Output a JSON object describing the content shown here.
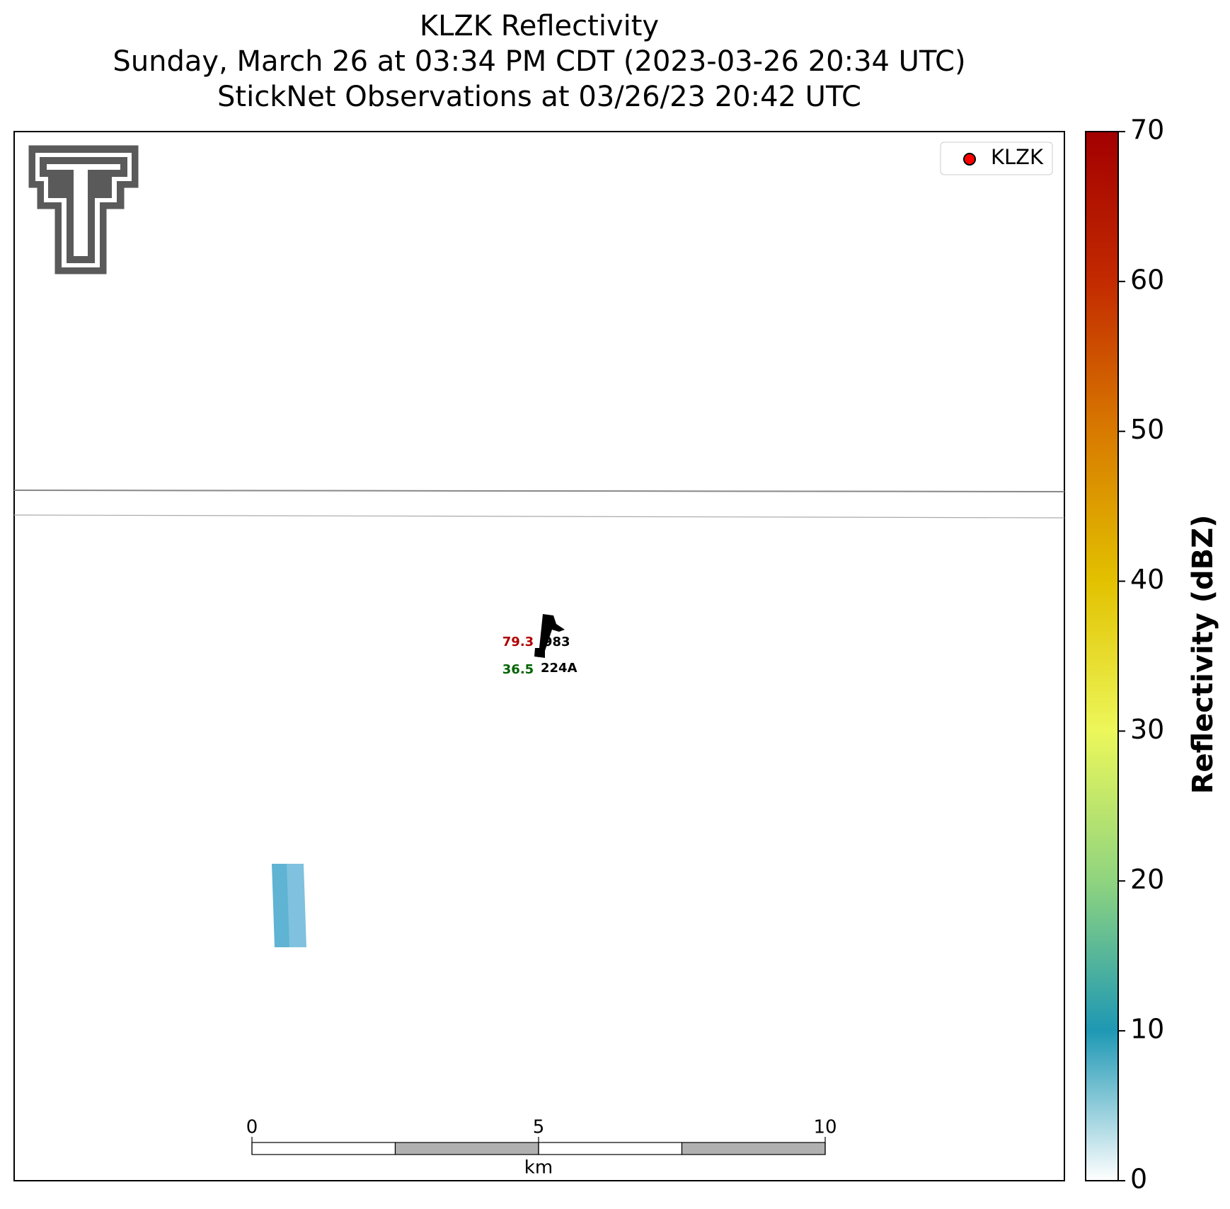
{
  "header": {
    "title_lines": [
      "KLZK Reflectivity",
      "Sunday, March 26 at 03:34 PM CDT (2023-03-26 20:34 UTC)",
      "StickNet Observations at 03/26/23 20:42 UTC"
    ]
  },
  "legend": {
    "label": "KLZK",
    "color": "#ff0000"
  },
  "colorbar": {
    "label": "Reflectivity (dBZ)",
    "lim": [
      0,
      70
    ],
    "ticks": [
      0,
      10,
      20,
      30,
      40,
      50,
      60,
      70
    ],
    "colormap": [
      "#ffffff",
      "#1e98b4",
      "#8fd47f",
      "#ecf75a",
      "#e2c100",
      "#d87a00",
      "#c32a00",
      "#a20000"
    ]
  },
  "stations": [
    {
      "id": "224A",
      "temperature": 79.3,
      "dewpoint": 36.5,
      "pressure": 983
    }
  ],
  "echoes": [
    {
      "value": 5,
      "color": "#5fb3d3"
    },
    {
      "value": 4,
      "color": "#7fc1de"
    }
  ],
  "scale_bar": {
    "unit": "km",
    "lim": [
      0,
      10
    ],
    "ticks": [
      0,
      5,
      10
    ]
  }
}
